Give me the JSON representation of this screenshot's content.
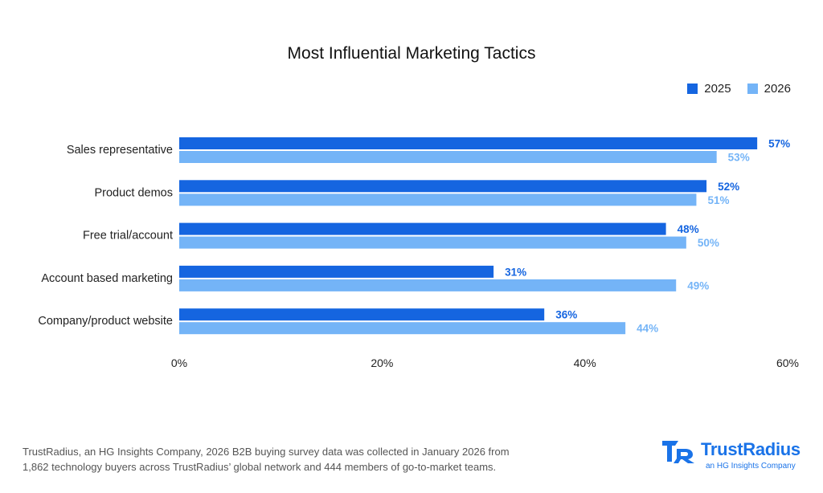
{
  "chart_data": {
    "type": "bar",
    "orientation": "horizontal",
    "title": "Most Influential Marketing Tactics",
    "xlabel": "",
    "ylabel": "",
    "categories": [
      "Sales representative",
      "Product demos",
      "Free trial/account",
      "Account based marketing",
      "Company/product website"
    ],
    "series": [
      {
        "name": "2025",
        "values": [
          57,
          52,
          48,
          31,
          36
        ],
        "labels": [
          "57%",
          "52%",
          "48%",
          "31%",
          "36%"
        ],
        "color": "#1565e0"
      },
      {
        "name": "2026",
        "values": [
          53,
          51,
          50,
          49,
          44
        ],
        "labels": [
          "53%",
          "51%",
          "50%",
          "49%",
          "44%"
        ],
        "color": "#74b4f7"
      }
    ],
    "xlim": [
      0,
      60
    ],
    "xticks": [
      "0%",
      "20%",
      "40%",
      "60%"
    ],
    "grid": false,
    "legend_position": "top-right"
  },
  "footnote": {
    "line1": "TrustRadius, an HG Insights Company, 2026 B2B buying survey data was collected in January 2026 from",
    "line2": "1,862 technology buyers across TrustRadius’ global network and 444 members of go-to-market teams."
  },
  "brand": {
    "name": "TrustRadius",
    "tagline": "an HG Insights Company",
    "icon": "trustradius-logo",
    "color": "#1a73e8"
  }
}
